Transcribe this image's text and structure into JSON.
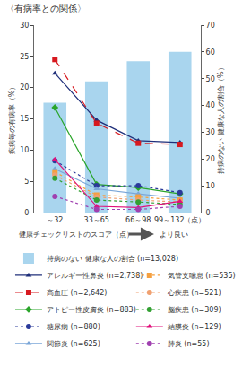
{
  "chart_data": {
    "type": "combo",
    "title": "〈有病率との関係〉",
    "x_label": "健康チェックリストのスコア（点）",
    "annotation": "より良い",
    "y_label": "疾病毎の有病率（%）",
    "y2_label": "持病のない 健康な人の割合（%）",
    "categories": [
      "～32",
      "33～65",
      "66～98",
      "99～132（点）"
    ],
    "ylim": [
      0,
      30
    ],
    "yticks": [
      0,
      5,
      10,
      15,
      20,
      25,
      30
    ],
    "y2lim": [
      0,
      70
    ],
    "y2ticks": [
      0,
      10,
      20,
      30,
      40,
      50,
      60,
      70
    ],
    "grid": false,
    "legend": "bottom",
    "series": [
      {
        "name": "持病のない 健康な人の割合 (n=13,028)",
        "type": "bar",
        "axis": "y2",
        "color": "#a9d5ee",
        "values": [
          41,
          49,
          56.5,
          60
        ]
      },
      {
        "name": "アレルギー性鼻炎 (n=2,738)",
        "type": "line",
        "color": "#1f2f7a",
        "line_style": "solid",
        "marker": "triangle-up",
        "values": [
          22.3,
          14.8,
          11.5,
          11.2
        ]
      },
      {
        "name": "高血圧 (n=2,642)",
        "type": "line",
        "color": "#d7191f",
        "line_style": "dash",
        "marker": "square",
        "values": [
          24.5,
          14.3,
          11.1,
          10.9
        ]
      },
      {
        "name": "アトピー性皮膚炎 (n=883)",
        "type": "line",
        "color": "#2aa52a",
        "line_style": "solid",
        "marker": "diamond",
        "values": [
          16.8,
          4.5,
          4.0,
          3.0
        ]
      },
      {
        "name": "糖尿病 (n=880)",
        "type": "line",
        "color": "#2b3a9a",
        "line_style": "dot",
        "marker": "circle",
        "values": [
          8.3,
          4.3,
          4.3,
          3.2
        ]
      },
      {
        "name": "関節炎 (n=625)",
        "type": "line",
        "color": "#7aa6d8",
        "line_style": "solid",
        "marker": "triangle-up",
        "values": [
          7.0,
          3.8,
          3.0,
          2.3
        ]
      },
      {
        "name": "気管支喘息 (n=535)",
        "type": "line",
        "color": "#f5a040",
        "line_style": "dot",
        "marker": "square",
        "values": [
          6.5,
          2.8,
          2.5,
          2.0
        ]
      },
      {
        "name": "心疾患 (n=521)",
        "type": "line",
        "color": "#f0a070",
        "line_style": "dot",
        "marker": "circle",
        "values": [
          6.0,
          2.5,
          2.0,
          1.7
        ]
      },
      {
        "name": "脳疾患 (n=309)",
        "type": "line",
        "color": "#33a033",
        "line_style": "dot",
        "marker": "circle",
        "values": [
          5.5,
          2.0,
          1.7,
          1.3
        ]
      },
      {
        "name": "結膜炎 (n=129)",
        "type": "line",
        "color": "#e0107a",
        "line_style": "solid",
        "marker": "triangle-up",
        "values": [
          8.5,
          1.0,
          0.8,
          1.8
        ]
      },
      {
        "name": "肺炎 (n=55)",
        "type": "line",
        "color": "#a040b0",
        "line_style": "dot",
        "marker": "circle",
        "values": [
          2.6,
          0.5,
          0.5,
          1.0
        ]
      }
    ]
  }
}
